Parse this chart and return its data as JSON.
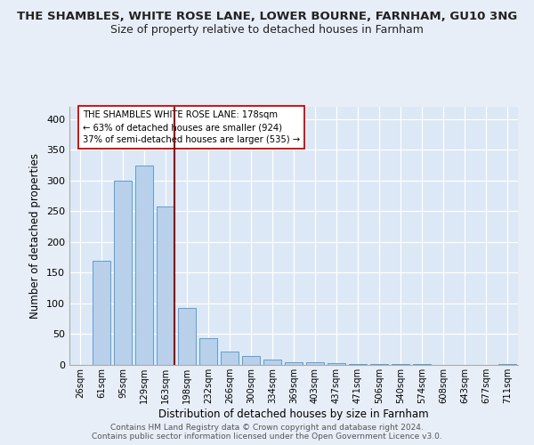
{
  "title": "THE SHAMBLES, WHITE ROSE LANE, LOWER BOURNE, FARNHAM, GU10 3NG",
  "subtitle": "Size of property relative to detached houses in Farnham",
  "xlabel": "Distribution of detached houses by size in Farnham",
  "ylabel": "Number of detached properties",
  "bar_color": "#b8d0ea",
  "bar_edge_color": "#5a9fd4",
  "line_color": "#8b0000",
  "background_color": "#dce8f5",
  "fig_background": "#e8eef8",
  "annotation_text": [
    "THE SHAMBLES WHITE ROSE LANE: 178sqm",
    "← 63% of detached houses are smaller (924)",
    "37% of semi-detached houses are larger (535) →"
  ],
  "categories": [
    "26sqm",
    "61sqm",
    "95sqm",
    "129sqm",
    "163sqm",
    "198sqm",
    "232sqm",
    "266sqm",
    "300sqm",
    "334sqm",
    "369sqm",
    "403sqm",
    "437sqm",
    "471sqm",
    "506sqm",
    "540sqm",
    "574sqm",
    "608sqm",
    "643sqm",
    "677sqm",
    "711sqm"
  ],
  "bar_heights": [
    0,
    170,
    300,
    325,
    258,
    92,
    43,
    22,
    15,
    8,
    5,
    4,
    3,
    2,
    2,
    1,
    1,
    0,
    0,
    0,
    2
  ],
  "ylim": [
    0,
    420
  ],
  "yticks": [
    0,
    50,
    100,
    150,
    200,
    250,
    300,
    350,
    400
  ],
  "line_x_index": 4.43,
  "footer1": "Contains HM Land Registry data © Crown copyright and database right 2024.",
  "footer2": "Contains public sector information licensed under the Open Government Licence v3.0."
}
